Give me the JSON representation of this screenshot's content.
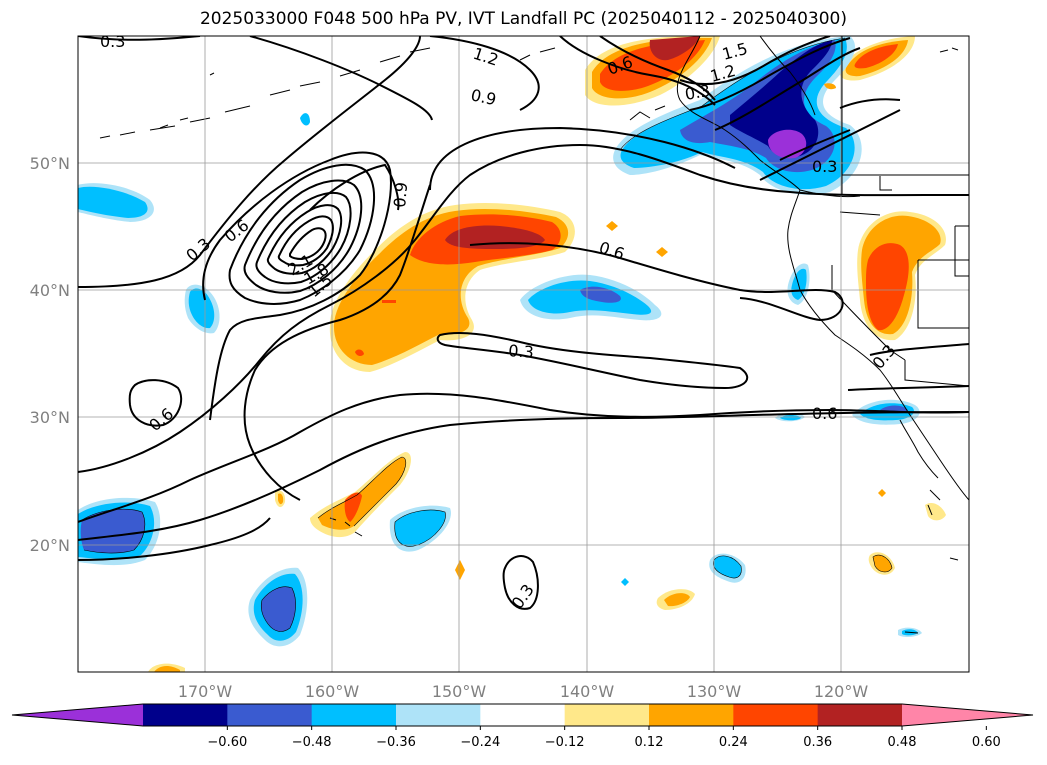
{
  "title": "2025033000 F048 500 hPa PV, IVT Landfall PC (2025040112 - 2025040300)",
  "map": {
    "lon_labels": [
      "170°W",
      "160°W",
      "150°W",
      "140°W",
      "130°W",
      "120°W"
    ],
    "lat_labels": [
      "50°N",
      "40°N",
      "30°N",
      "20°N"
    ],
    "gridlines": true
  },
  "contour_labels": [
    "0.3",
    "1.2",
    "0.9",
    "0.6",
    "0.6",
    "0.3",
    "2.1",
    "1.8",
    "1.5",
    "0.9",
    "0.6",
    "0.3",
    "0.6",
    "0.3",
    "0.3",
    "0.3",
    "1.5",
    "1.2",
    "0.6",
    "0.3"
  ],
  "colorbar": {
    "ticks": [
      "−0.60",
      "−0.48",
      "−0.36",
      "−0.24",
      "−0.12",
      "0.12",
      "0.24",
      "0.36",
      "0.48",
      "0.60"
    ],
    "colors": [
      "#9b30d9",
      "#00008b",
      "#3a5bd0",
      "#00bfff",
      "#aee3f8",
      "#ffffff",
      "#ffe88a",
      "#ffa500",
      "#ff4500",
      "#b22222",
      "#ff85a8"
    ],
    "extend": "both"
  },
  "chart_data": {
    "type": "contour-map",
    "title": "2025033000 F048 500 hPa PV, IVT Landfall PC (2025040112 - 2025040300)",
    "contour_field": "500 hPa PV",
    "contour_levels": [
      0.3,
      0.6,
      0.9,
      1.2,
      1.5,
      1.8,
      2.1
    ],
    "shaded_field": "IVT Landfall PC",
    "color_levels": [
      -0.6,
      -0.48,
      -0.36,
      -0.24,
      -0.12,
      0.12,
      0.24,
      0.36,
      0.48,
      0.6
    ],
    "xlim": [
      -180,
      -110
    ],
    "ylim": [
      10,
      60
    ]
  }
}
